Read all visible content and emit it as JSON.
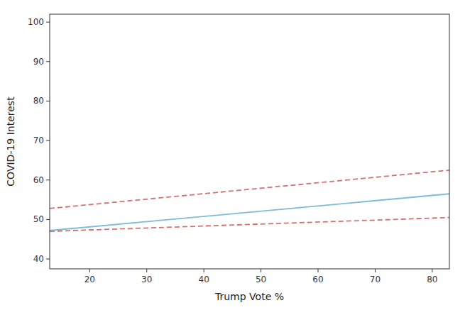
{
  "chart_data": {
    "type": "line",
    "xlabel": "Trump Vote %",
    "ylabel": "COVID-19 Interest",
    "x": [
      13,
      83
    ],
    "xlim": [
      13,
      83
    ],
    "ylim": [
      37.5,
      102
    ],
    "xticks": [
      20,
      30,
      40,
      50,
      60,
      70,
      80
    ],
    "yticks": [
      40,
      50,
      60,
      70,
      80,
      90,
      100
    ],
    "grid": false,
    "series": [
      {
        "color": "#7bbdd4",
        "line_style": "solid",
        "values": [
          47.2,
          56.5
        ]
      },
      {
        "color": "#d47070",
        "line_style": "dashed",
        "values": [
          52.8,
          62.5
        ]
      },
      {
        "color": "#d47070",
        "line_style": "dashed",
        "values": [
          47.0,
          50.5
        ]
      }
    ]
  }
}
